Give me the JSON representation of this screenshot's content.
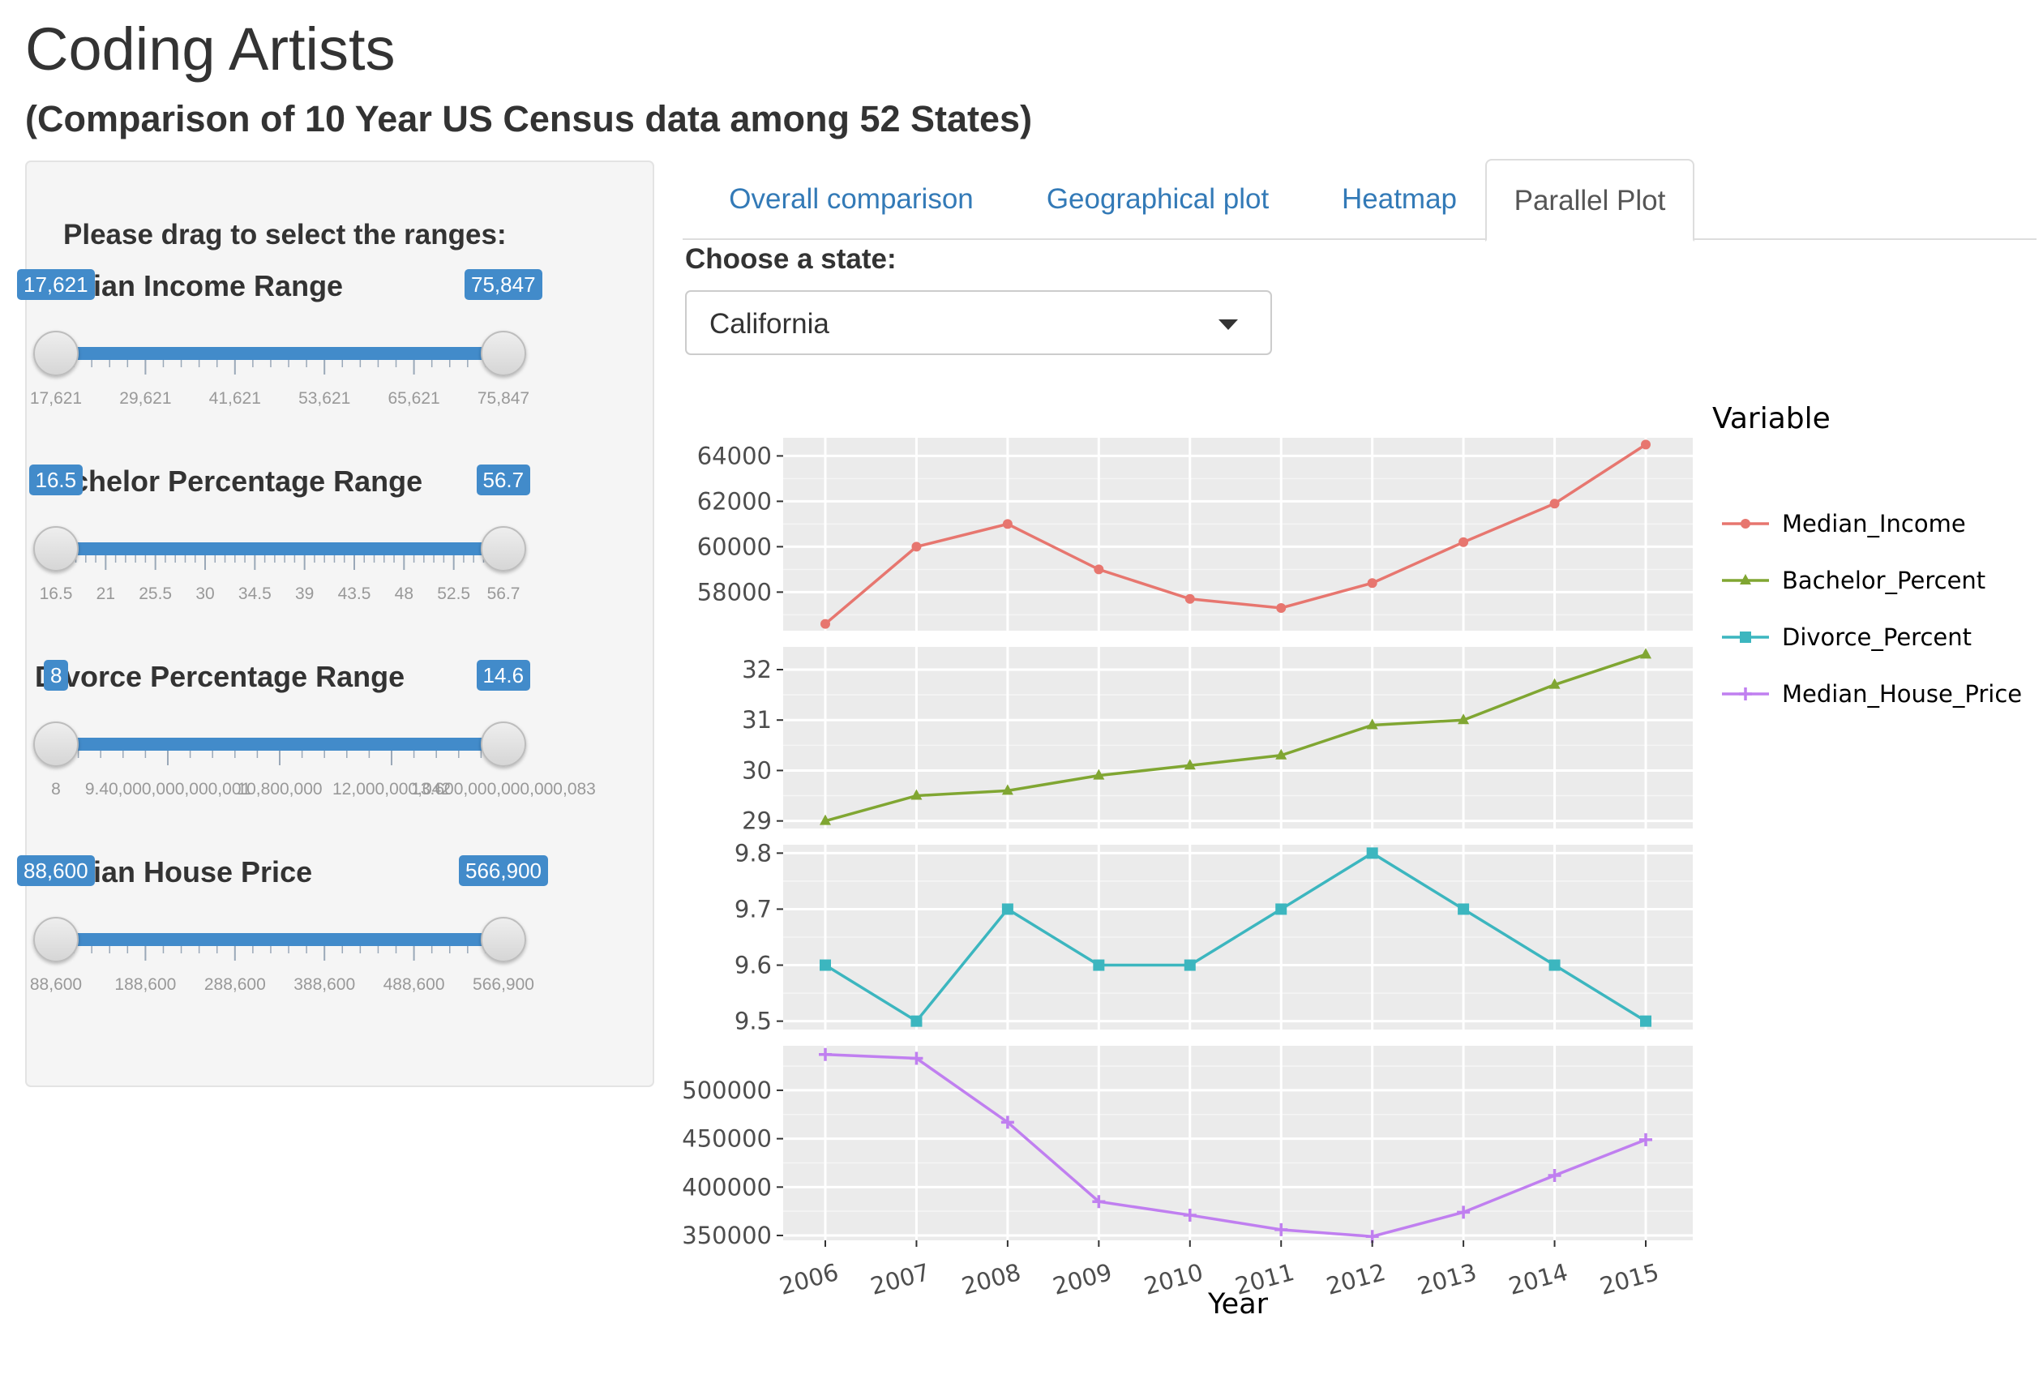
{
  "header": {
    "title": "Coding Artists",
    "subtitle": "(Comparison of 10 Year US Census data among 52 States)"
  },
  "sidebar": {
    "intro": "Please drag to select the ranges:",
    "sliders": [
      {
        "label": "Median Income Range",
        "from": "17,621",
        "to": "75,847",
        "grid_labels": [
          "17,621",
          "29,621",
          "41,621",
          "53,621",
          "65,621",
          "75,847"
        ]
      },
      {
        "label": "Bachelor Percentage Range",
        "from": "16.5",
        "to": "56.7",
        "grid_labels": [
          "16.5",
          "21",
          "25.5",
          "30",
          "34.5",
          "39",
          "43.5",
          "48",
          "52.5",
          "56.7"
        ]
      },
      {
        "label": "Divorce Percentage Range",
        "from": "8",
        "to": "14.6",
        "grid_labels": [
          "8",
          "9.40,000,000,000,001",
          "10,800,000",
          "12,000,000,042",
          "13.600,000,000,000,083"
        ]
      },
      {
        "label": "Median House Price",
        "from": "88,600",
        "to": "566,900",
        "grid_labels": [
          "88,600",
          "188,600",
          "288,600",
          "388,600",
          "488,600",
          "566,900"
        ]
      }
    ]
  },
  "tabs": [
    {
      "label": "Overall comparison",
      "active": false
    },
    {
      "label": "Geographical plot",
      "active": false
    },
    {
      "label": "Heatmap",
      "active": false
    },
    {
      "label": "Parallel Plot",
      "active": true
    }
  ],
  "state_picker": {
    "label": "Choose a state:",
    "value": "California"
  },
  "colors": {
    "accent": "#428bca",
    "link": "#337ab7",
    "panel_bg": "#ebebeb"
  },
  "chart_data": {
    "type": "line",
    "xlabel": "Year",
    "legend_title": "Variable",
    "legend_position": "right",
    "x": [
      "2006",
      "2007",
      "2008",
      "2009",
      "2010",
      "2011",
      "2012",
      "2013",
      "2014",
      "2015"
    ],
    "grid": true,
    "series": [
      {
        "name": "Median_Income",
        "color": "#e7766f",
        "marker": "circle",
        "values": [
          56600,
          60000,
          61000,
          59000,
          57700,
          57300,
          58400,
          60200,
          61900,
          64500
        ],
        "ylim": [
          56300,
          64800
        ],
        "yticks": [
          "58000",
          "60000",
          "62000",
          "64000"
        ]
      },
      {
        "name": "Bachelor_Percent",
        "color": "#80a632",
        "marker": "triangle",
        "values": [
          29.0,
          29.5,
          29.6,
          29.9,
          30.1,
          30.3,
          30.9,
          31.0,
          31.7,
          32.3
        ],
        "ylim": [
          28.85,
          32.45
        ],
        "yticks": [
          "29",
          "30",
          "31",
          "32"
        ]
      },
      {
        "name": "Divorce_Percent",
        "color": "#3cb6bf",
        "marker": "square",
        "values": [
          9.6,
          9.5,
          9.7,
          9.6,
          9.6,
          9.7,
          9.8,
          9.7,
          9.6,
          9.5
        ],
        "ylim": [
          9.485,
          9.815
        ],
        "yticks": [
          "9.5",
          "9.6",
          "9.7",
          "9.8"
        ]
      },
      {
        "name": "Median_House_Price",
        "color": "#c07ff0",
        "marker": "plus",
        "values": [
          537000,
          533000,
          467000,
          385000,
          371000,
          356000,
          349000,
          374000,
          412000,
          449000
        ],
        "ylim": [
          345000,
          546000
        ],
        "yticks": [
          "350000",
          "400000",
          "450000",
          "500000"
        ]
      }
    ]
  }
}
